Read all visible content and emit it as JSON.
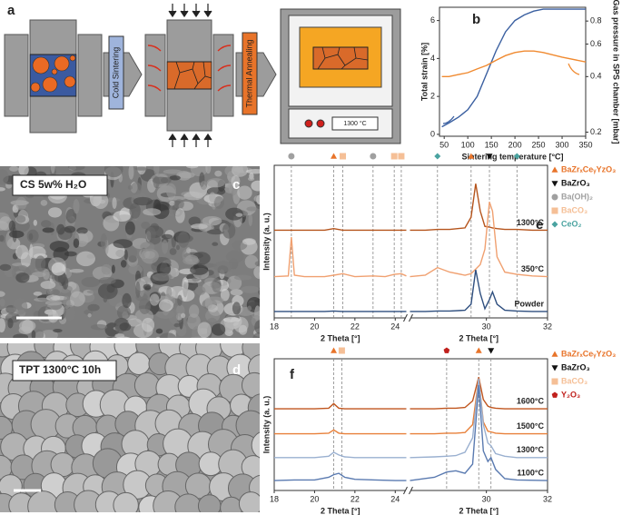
{
  "schematic": {
    "panel": "a",
    "step_1": "Cold Sintering",
    "step_2": "Thermal Annealing",
    "furnace_display": "1300 °C"
  },
  "micrographs": [
    {
      "panel": "c",
      "label": "CS 5w% H₂O"
    },
    {
      "panel": "d",
      "label": "TPT 1300°C 10h"
    }
  ],
  "chart_data": [
    {
      "type": "line",
      "panel": "b",
      "xlabel": "Sintering temperature [°C]",
      "ylabel": "Total strain [%]",
      "y2label": "Gas pressure in SPS chamber [mbar]",
      "x": [
        45,
        60,
        80,
        100,
        120,
        140,
        160,
        180,
        200,
        220,
        240,
        260,
        300,
        350
      ],
      "xlim": [
        40,
        350
      ],
      "xticks": [
        50,
        100,
        150,
        200,
        250,
        300,
        350
      ],
      "ylim": [
        -0.1,
        6.7
      ],
      "yticks": [
        0,
        2,
        4,
        6
      ],
      "y2lim": [
        0.19,
        0.95
      ],
      "y2ticks": [
        0.2,
        0.4,
        0.6,
        0.8
      ],
      "y2log": true,
      "series": [
        {
          "color": "#3a5fa0",
          "values": [
            0.4,
            0.6,
            0.9,
            1.3,
            2.0,
            3.2,
            4.4,
            5.4,
            6.0,
            6.3,
            6.5,
            6.6,
            6.6,
            6.6
          ]
        },
        {
          "color": "#f08a30",
          "axis": "y2",
          "values": [
            0.4,
            0.4,
            0.41,
            0.42,
            0.44,
            0.46,
            0.49,
            0.52,
            0.54,
            0.55,
            0.55,
            0.54,
            0.51,
            0.48
          ]
        }
      ]
    },
    {
      "type": "line",
      "panel": "e",
      "xlabel": "2 Theta [°]",
      "ylabel": "Intensity (a. u.)",
      "xlim": [
        18,
        32
      ],
      "xbreak": [
        24.55,
        27.5
      ],
      "xticks": [
        18,
        20,
        22,
        24,
        30,
        32
      ],
      "ylim": [
        0,
        10
      ],
      "legend": "right",
      "x": [
        18,
        18.7,
        18.85,
        19.0,
        19.5,
        20.5,
        20.95,
        21.4,
        22,
        22.9,
        23.5,
        23.95,
        24.3,
        24.55,
        27.5,
        28.0,
        28.4,
        28.8,
        29.3,
        29.5,
        29.65,
        29.8,
        29.95,
        30.1,
        30.2,
        30.35,
        30.6,
        31.0,
        31.5,
        32
      ],
      "series": [
        {
          "name": "1300°C",
          "color": "#b5541c",
          "values": [
            5.75,
            5.75,
            5.75,
            5.75,
            5.75,
            5.75,
            5.85,
            5.75,
            5.75,
            5.75,
            5.75,
            5.75,
            5.75,
            5.75,
            5.75,
            5.75,
            5.8,
            5.8,
            5.9,
            6.6,
            8.8,
            7.0,
            6.0,
            5.95,
            5.9,
            5.85,
            5.8,
            5.8,
            5.75,
            5.75
          ]
        },
        {
          "name": "350°C",
          "color": "#f0a070",
          "values": [
            2.7,
            2.75,
            5.3,
            2.8,
            2.7,
            2.7,
            2.8,
            2.9,
            2.7,
            2.75,
            2.7,
            2.85,
            2.9,
            2.75,
            2.7,
            2.8,
            3.3,
            3.0,
            2.8,
            2.9,
            3.2,
            3.5,
            4.5,
            7.6,
            7.0,
            4.0,
            3.0,
            2.85,
            2.75,
            2.7
          ]
        },
        {
          "name": "Powder",
          "color": "#2f4f7f",
          "values": [
            0.42,
            0.42,
            0.42,
            0.42,
            0.42,
            0.42,
            0.45,
            0.42,
            0.42,
            0.42,
            0.42,
            0.42,
            0.42,
            0.42,
            0.42,
            0.42,
            0.45,
            0.45,
            0.5,
            0.9,
            3.15,
            1.6,
            0.6,
            1.2,
            1.7,
            0.9,
            0.5,
            0.45,
            0.42,
            0.42
          ]
        }
      ],
      "reference_phases": [
        {
          "name": "BaZrₓCeᵧYzO₃",
          "color": "#e8742a",
          "marker": "triangle",
          "x": [
            20.95,
            29.5
          ]
        },
        {
          "name": "BaZrO₃",
          "color": "#111111",
          "marker": "triangle-down",
          "x": [
            30.1
          ]
        },
        {
          "name": "Ba(OH)₂",
          "color": "#a0a0a0",
          "marker": "circle",
          "x": [
            18.85,
            22.9
          ]
        },
        {
          "name": "BaCO₃",
          "color": "#f5bf96",
          "marker": "square",
          "x": [
            21.4,
            23.95,
            24.3
          ]
        },
        {
          "name": "CeO₂",
          "color": "#4aa3a0",
          "marker": "diamond",
          "x": [
            28.4,
            31.0
          ]
        }
      ]
    },
    {
      "type": "line",
      "panel": "f",
      "xlabel": "2 Theta [°]",
      "ylabel": "Intensity (a. u.)",
      "xlim": [
        18,
        32
      ],
      "xbreak": [
        24.55,
        27.5
      ],
      "xticks": [
        18,
        20,
        22,
        24,
        30,
        32
      ],
      "ylim": [
        0,
        10
      ],
      "legend": "right",
      "x": [
        18,
        19,
        20,
        20.7,
        20.95,
        21.2,
        21.5,
        22,
        23,
        24,
        24.55,
        27.5,
        28.3,
        28.7,
        29.0,
        29.3,
        29.55,
        29.75,
        29.9,
        30.05,
        30.15,
        30.3,
        30.6,
        31,
        32
      ],
      "series": [
        {
          "name": "1600°C",
          "color": "#c0551e",
          "values": [
            6.2,
            6.2,
            6.2,
            6.25,
            6.6,
            6.25,
            6.2,
            6.2,
            6.2,
            6.2,
            6.2,
            6.2,
            6.2,
            6.25,
            6.25,
            6.3,
            6.8,
            8.6,
            6.9,
            6.4,
            6.3,
            6.25,
            6.2,
            6.2,
            6.2
          ]
        },
        {
          "name": "1500°C",
          "color": "#e8803a",
          "values": [
            4.3,
            4.3,
            4.3,
            4.35,
            4.6,
            4.35,
            4.3,
            4.3,
            4.3,
            4.3,
            4.3,
            4.3,
            4.3,
            4.35,
            4.35,
            4.4,
            5.0,
            8.5,
            5.2,
            4.5,
            4.45,
            4.35,
            4.3,
            4.3,
            4.3
          ]
        },
        {
          "name": "1300°C",
          "color": "#9ab0d0",
          "values": [
            2.5,
            2.5,
            2.5,
            2.6,
            2.9,
            2.7,
            2.55,
            2.5,
            2.5,
            2.5,
            2.5,
            2.5,
            2.55,
            2.6,
            2.65,
            2.9,
            4.0,
            8.5,
            5.0,
            3.6,
            3.4,
            2.8,
            2.6,
            2.5,
            2.5
          ]
        },
        {
          "name": "1100°C",
          "color": "#5a7ab0",
          "values": [
            0.75,
            0.8,
            0.8,
            1.0,
            1.2,
            1.3,
            1.0,
            0.85,
            0.8,
            0.75,
            0.75,
            0.75,
            1.0,
            1.4,
            1.5,
            1.3,
            2.0,
            8.0,
            3.0,
            2.2,
            2.5,
            1.6,
            0.9,
            0.8,
            0.75
          ]
        }
      ],
      "reference_phases": [
        {
          "name": "BaZrₓCeᵧYzO₃",
          "color": "#e8742a",
          "marker": "triangle",
          "x": [
            20.95,
            29.75
          ]
        },
        {
          "name": "BaZrO₃",
          "color": "#111111",
          "marker": "triangle-down",
          "x": [
            30.15
          ]
        },
        {
          "name": "BaCO₃",
          "color": "#f5bf96",
          "marker": "square",
          "x": [
            21.35
          ]
        },
        {
          "name": "Y₂O₃",
          "color": "#c0201c",
          "marker": "pentagon",
          "x": [
            28.7
          ]
        }
      ]
    }
  ]
}
